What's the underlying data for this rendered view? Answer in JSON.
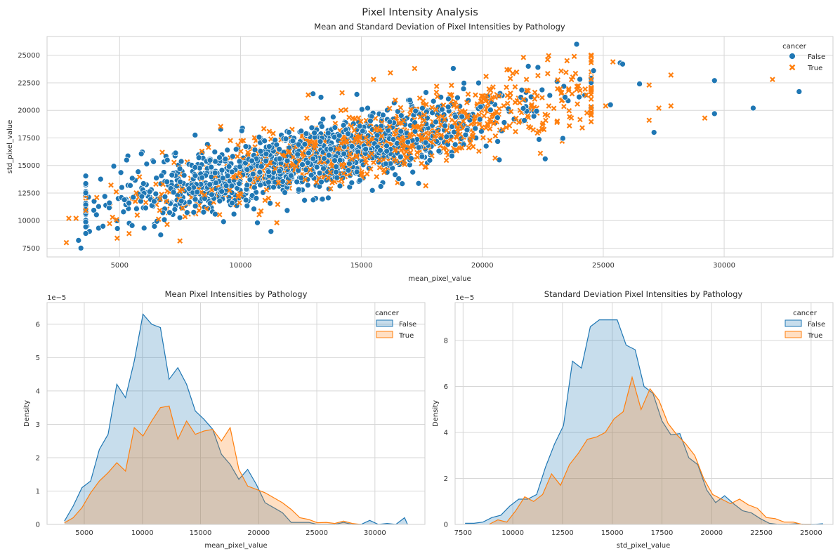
{
  "figure_title": "Pixel Intensity Analysis",
  "colors": {
    "false": "#1f77b4",
    "true": "#ff7f0e"
  },
  "chart_data": [
    {
      "type": "scatter",
      "title": "Mean and Standard Deviation of Pixel Intensities by Pathology",
      "xlabel": "mean_pixel_value",
      "ylabel": "std_pixel_value",
      "xlim": [
        2000,
        34500
      ],
      "ylim": [
        6700,
        26700
      ],
      "xticks": [
        5000,
        10000,
        15000,
        20000,
        25000,
        30000
      ],
      "yticks": [
        7500,
        10000,
        12500,
        15000,
        17500,
        20000,
        22500,
        25000
      ],
      "legend_title": "cancer",
      "legend_placement": "top-right",
      "grid": true,
      "trend": {
        "intercept": 9000,
        "slope": 0.52,
        "sd_spread": 1550
      },
      "series": [
        {
          "name": "False",
          "marker": "circle",
          "clusters": [
            {
              "x_mean": 12500,
              "x_sd": 4200,
              "n": 1300
            }
          ],
          "outliers": [
            [
              3400,
              7500
            ],
            [
              3300,
              8200
            ],
            [
              6700,
              8700
            ],
            [
              9300,
              9900
            ],
            [
              10700,
              9800
            ],
            [
              29600,
              22700
            ],
            [
              29600,
              19700
            ],
            [
              31200,
              20200
            ],
            [
              33100,
              21700
            ],
            [
              27100,
              18000
            ],
            [
              26500,
              22400
            ],
            [
              25700,
              24300
            ],
            [
              25300,
              20500
            ],
            [
              23900,
              26000
            ],
            [
              22300,
              23900
            ],
            [
              22600,
              15600
            ],
            [
              20700,
              15500
            ],
            [
              13000,
              21500
            ],
            [
              18800,
              23800
            ],
            [
              24600,
              23600
            ],
            [
              25800,
              24200
            ],
            [
              21900,
              24000
            ]
          ]
        },
        {
          "name": "True",
          "marker": "x",
          "clusters": [
            {
              "x_mean": 15500,
              "x_sd": 4700,
              "n": 950
            }
          ],
          "outliers": [
            [
              2800,
              8000
            ],
            [
              2900,
              10200
            ],
            [
              3200,
              10200
            ],
            [
              3600,
              9600
            ],
            [
              4900,
              8400
            ],
            [
              11500,
              9800
            ],
            [
              32000,
              22800
            ],
            [
              29200,
              19300
            ],
            [
              27800,
              23200
            ],
            [
              27800,
              20400
            ],
            [
              27300,
              20200
            ],
            [
              26900,
              22300
            ],
            [
              26900,
              19100
            ],
            [
              25100,
              20400
            ],
            [
              25400,
              24400
            ],
            [
              23800,
              24900
            ],
            [
              23500,
              24500
            ],
            [
              22700,
              24600
            ],
            [
              21700,
              24800
            ],
            [
              22400,
              16100
            ],
            [
              23300,
              17200
            ],
            [
              23600,
              18600
            ],
            [
              15500,
              22800
            ],
            [
              16200,
              23400
            ],
            [
              17200,
              23800
            ],
            [
              12800,
              21400
            ],
            [
              14200,
              21600
            ]
          ]
        }
      ]
    },
    {
      "type": "area",
      "title": "Mean Pixel Intensities by Pathology",
      "xlabel": "mean_pixel_value",
      "ylabel": "Density",
      "offset_text": "1e−5",
      "xlim": [
        1800,
        34300
      ],
      "ylim": [
        0,
        6.65
      ],
      "xticks": [
        5000,
        10000,
        15000,
        20000,
        25000,
        30000
      ],
      "yticks": [
        0,
        1,
        2,
        3,
        4,
        5,
        6
      ],
      "legend_title": "cancer",
      "legend_placement": "top-right",
      "grid": true,
      "series": [
        {
          "name": "False",
          "x": [
            3300,
            4050,
            4800,
            5550,
            6300,
            7050,
            7800,
            8550,
            9300,
            10050,
            10800,
            11550,
            12300,
            13050,
            13800,
            14550,
            15300,
            16050,
            16800,
            17550,
            18300,
            19050,
            19800,
            20550,
            21300,
            22050,
            22800,
            23550,
            24300,
            25050,
            25800,
            26550,
            27300,
            28050,
            28800,
            29550,
            30300,
            31050,
            31800,
            32550,
            32800
          ],
          "values": [
            0.1,
            0.55,
            1.1,
            1.3,
            2.25,
            2.7,
            4.2,
            3.8,
            4.9,
            6.3,
            6.0,
            5.9,
            4.35,
            4.7,
            4.2,
            3.4,
            3.15,
            2.85,
            2.1,
            1.8,
            1.35,
            1.65,
            1.2,
            0.65,
            0.5,
            0.35,
            0.06,
            0.06,
            0.06,
            0.0,
            0.0,
            0.0,
            0.06,
            0.0,
            0.0,
            0.12,
            0.0,
            0.03,
            0.0,
            0.2,
            0.0
          ]
        },
        {
          "name": "True",
          "x": [
            3300,
            4050,
            4800,
            5550,
            6300,
            7050,
            7800,
            8550,
            9300,
            10050,
            10800,
            11550,
            12300,
            13050,
            13800,
            14550,
            15300,
            16050,
            16800,
            17550,
            18300,
            19050,
            19800,
            20550,
            21300,
            22050,
            22800,
            23550,
            24300,
            25050,
            25800,
            26550,
            27300,
            28050,
            28800
          ],
          "values": [
            0.05,
            0.2,
            0.5,
            0.95,
            1.3,
            1.55,
            1.85,
            1.6,
            2.9,
            2.65,
            3.1,
            3.5,
            3.55,
            2.55,
            3.1,
            2.7,
            2.8,
            2.85,
            2.5,
            2.9,
            1.65,
            1.15,
            1.05,
            0.95,
            0.8,
            0.65,
            0.45,
            0.2,
            0.15,
            0.05,
            0.06,
            0.03,
            0.1,
            0.03,
            0.0
          ]
        }
      ]
    },
    {
      "type": "area",
      "title": "Standard Deviation Pixel Intensities by Pathology",
      "xlabel": "std_pixel_value",
      "ylabel": "Density",
      "offset_text": "1e−5",
      "xlim": [
        7100,
        26100
      ],
      "ylim": [
        0,
        9.65
      ],
      "xticks": [
        7500,
        10000,
        12500,
        15000,
        17500,
        20000,
        22500,
        25000
      ],
      "yticks": [
        0,
        2,
        4,
        6,
        8
      ],
      "legend_title": "cancer",
      "legend_placement": "top-right",
      "grid": true,
      "series": [
        {
          "name": "False",
          "x": [
            7600,
            8050,
            8500,
            8950,
            9400,
            9850,
            10300,
            10750,
            11200,
            11650,
            12100,
            12550,
            13000,
            13450,
            13900,
            14350,
            14800,
            15250,
            15700,
            16150,
            16600,
            17050,
            17500,
            17950,
            18400,
            18850,
            19300,
            19750,
            20200,
            20650,
            21100,
            21550,
            22000,
            22450,
            22900,
            23350,
            23800,
            24250,
            24700,
            25150,
            25600
          ],
          "values": [
            0.05,
            0.05,
            0.1,
            0.3,
            0.4,
            0.8,
            1.1,
            1.1,
            1.3,
            2.5,
            3.5,
            4.3,
            7.1,
            6.8,
            8.6,
            8.9,
            8.9,
            8.9,
            7.8,
            7.6,
            6.0,
            5.7,
            4.5,
            3.9,
            3.95,
            2.9,
            2.6,
            1.5,
            0.95,
            1.25,
            0.9,
            0.6,
            0.5,
            0.25,
            0.05,
            0.0,
            0.0,
            0.03,
            0.0,
            0.0,
            0.03
          ]
        },
        {
          "name": "True",
          "x": [
            8800,
            9250,
            9700,
            10150,
            10600,
            11050,
            11500,
            11950,
            12400,
            12850,
            13300,
            13750,
            14200,
            14650,
            15100,
            15550,
            16000,
            16450,
            16900,
            17350,
            17800,
            18250,
            18700,
            19150,
            19600,
            20050,
            20500,
            20950,
            21400,
            21850,
            22300,
            22750,
            23200,
            23650,
            24100,
            24550,
            25000
          ],
          "values": [
            0.0,
            0.2,
            0.1,
            0.6,
            1.2,
            1.0,
            1.3,
            2.2,
            1.7,
            2.6,
            3.1,
            3.7,
            3.8,
            4.0,
            4.6,
            4.9,
            6.4,
            5.0,
            5.9,
            5.4,
            4.4,
            3.9,
            3.5,
            3.0,
            2.0,
            1.3,
            1.1,
            0.9,
            1.1,
            0.85,
            0.7,
            0.3,
            0.25,
            0.1,
            0.1,
            0.0,
            0.0
          ]
        }
      ]
    }
  ]
}
